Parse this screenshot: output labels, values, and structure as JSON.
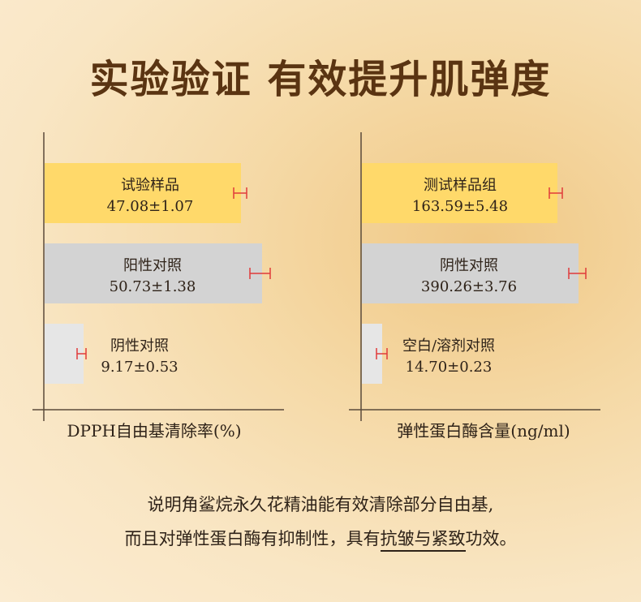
{
  "title": "实验验证 有效提升肌弹度",
  "colors": {
    "test": "#ffd96a",
    "positive": "#d3d3d3",
    "negative": "#e6e6e6",
    "error_bar": "#e03a3a",
    "axis": "#5a4a3a"
  },
  "chart_data": [
    {
      "type": "bar",
      "orientation": "horizontal",
      "xlabel": "DPPH自由基清除率(%)",
      "categories": [
        "试验样品",
        "阳性对照",
        "阴性对照"
      ],
      "values": [
        47.08,
        50.73,
        9.17
      ],
      "errors": [
        1.07,
        1.38,
        0.53
      ],
      "labels": [
        "47.08±1.07",
        "50.73±1.38",
        "9.17±0.53"
      ]
    },
    {
      "type": "bar",
      "orientation": "horizontal",
      "xlabel": "弹性蛋白酶含量(ng/ml)",
      "categories": [
        "测试样品组",
        "阴性对照",
        "空白/溶剂对照"
      ],
      "values": [
        163.59,
        390.26,
        14.7
      ],
      "errors": [
        5.48,
        3.76,
        0.23
      ],
      "labels": [
        "163.59±5.48",
        "390.26±3.76",
        "14.70±0.23"
      ]
    }
  ],
  "note": {
    "line1": "说明角鲨烷永久花精油能有效清除部分自由基,",
    "line2_pre": "而且对弹性蛋白酶有抑制性，具有",
    "line2_emph": "抗皱与紧致",
    "line2_post": "功效。"
  }
}
